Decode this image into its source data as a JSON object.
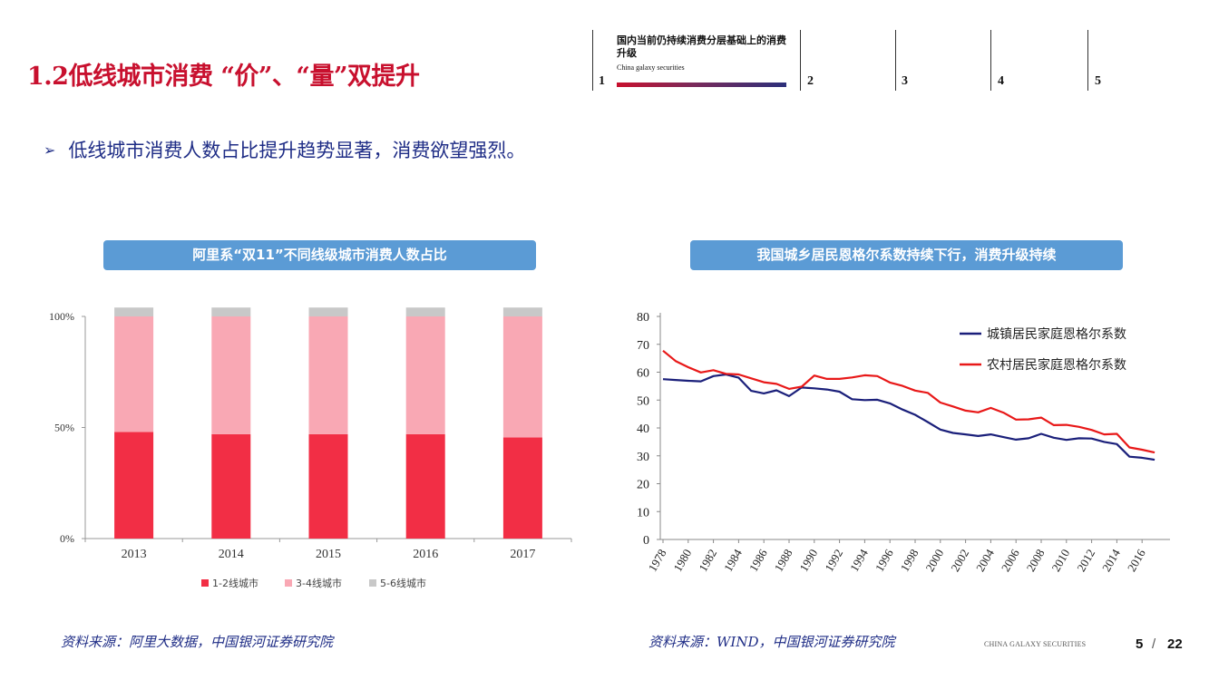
{
  "header": {
    "title": "1.2低线城市消费 “价”、“量”双提升",
    "nav": {
      "active_title": "国内当前仍持续消费分层基础上的消费升级",
      "active_subtitle": "China galaxy securities",
      "items": [
        "1",
        "2",
        "3",
        "4",
        "5"
      ]
    }
  },
  "bullet": {
    "text": "低线城市消费人数占比提升趋势显著，消费欲望强烈。"
  },
  "left_panel": {
    "caption": "阿里系“双11”不同线级城市消费人数占比",
    "source": "资料来源：阿里大数据，中国银河证券研究院"
  },
  "right_panel": {
    "caption": "我国城乡居民恩格尔系数持续下行，消费升级持续",
    "source": "资料来源：WIND，中国银河证券研究院"
  },
  "footer": {
    "brand": "CHINA GALAXY SECURITIES",
    "page": "5",
    "separator": "/",
    "total": "22"
  },
  "colors": {
    "title": "#c8102e",
    "accent_blue": "#1f2d86",
    "caption_bg": "#5b9bd5",
    "bar_1_2": "#f22e45",
    "bar_3_4": "#f9a8b4",
    "bar_5_6": "#c8c8c8",
    "urban_line": "#1a1f7a",
    "rural_line": "#e81818"
  },
  "chart_data": [
    {
      "type": "bar",
      "stacked": true,
      "categories": [
        "2013",
        "2014",
        "2015",
        "2016",
        "2017"
      ],
      "series": [
        {
          "name": "1-2线城市",
          "values": [
            48,
            47,
            47,
            47,
            45.5
          ]
        },
        {
          "name": "3-4线城市",
          "values": [
            52,
            53,
            53,
            53,
            54.5
          ]
        },
        {
          "name": "5-6线城市",
          "values": [
            4,
            4,
            4,
            4,
            4
          ]
        }
      ],
      "yticks": [
        "0%",
        "50%",
        "100%"
      ],
      "ylim": [
        0,
        100
      ],
      "legend_position": "bottom"
    },
    {
      "type": "line",
      "x": [
        1978,
        1979,
        1980,
        1981,
        1982,
        1983,
        1984,
        1985,
        1986,
        1987,
        1988,
        1989,
        1990,
        1991,
        1992,
        1993,
        1994,
        1995,
        1996,
        1997,
        1998,
        1999,
        2000,
        2001,
        2002,
        2003,
        2004,
        2005,
        2006,
        2007,
        2008,
        2009,
        2010,
        2011,
        2012,
        2013,
        2014,
        2015,
        2016,
        2017
      ],
      "xticks": [
        "1978",
        "1980",
        "1982",
        "1984",
        "1986",
        "1988",
        "1990",
        "1992",
        "1994",
        "1996",
        "1998",
        "2000",
        "2002",
        "2004",
        "2006",
        "2008",
        "2010",
        "2012",
        "2014",
        "2016"
      ],
      "series": [
        {
          "name": "城镇居民家庭恩格尔系数",
          "values": [
            57.5,
            57.2,
            56.9,
            56.7,
            58.6,
            59.2,
            58.0,
            53.3,
            52.4,
            53.5,
            51.4,
            54.5,
            54.2,
            53.8,
            53.0,
            50.3,
            50.0,
            50.1,
            48.8,
            46.6,
            44.7,
            42.1,
            39.4,
            38.2,
            37.7,
            37.1,
            37.7,
            36.7,
            35.8,
            36.3,
            37.9,
            36.5,
            35.7,
            36.3,
            36.2,
            35.0,
            34.2,
            29.7,
            29.3,
            28.6
          ]
        },
        {
          "name": "农村居民家庭恩格尔系数",
          "values": [
            67.7,
            64.0,
            61.8,
            59.9,
            60.7,
            59.4,
            59.2,
            57.8,
            56.4,
            55.8,
            54.0,
            54.8,
            58.8,
            57.6,
            57.6,
            58.1,
            58.9,
            58.6,
            56.3,
            55.1,
            53.4,
            52.6,
            49.1,
            47.7,
            46.2,
            45.6,
            47.2,
            45.5,
            43.0,
            43.1,
            43.7,
            41.0,
            41.1,
            40.4,
            39.3,
            37.7,
            37.9,
            33.0,
            32.2,
            31.2
          ]
        }
      ],
      "yticks": [
        "0",
        "10",
        "20",
        "30",
        "40",
        "50",
        "60",
        "70",
        "80"
      ],
      "ylim": [
        0,
        80
      ],
      "legend_position": "top-right"
    }
  ]
}
